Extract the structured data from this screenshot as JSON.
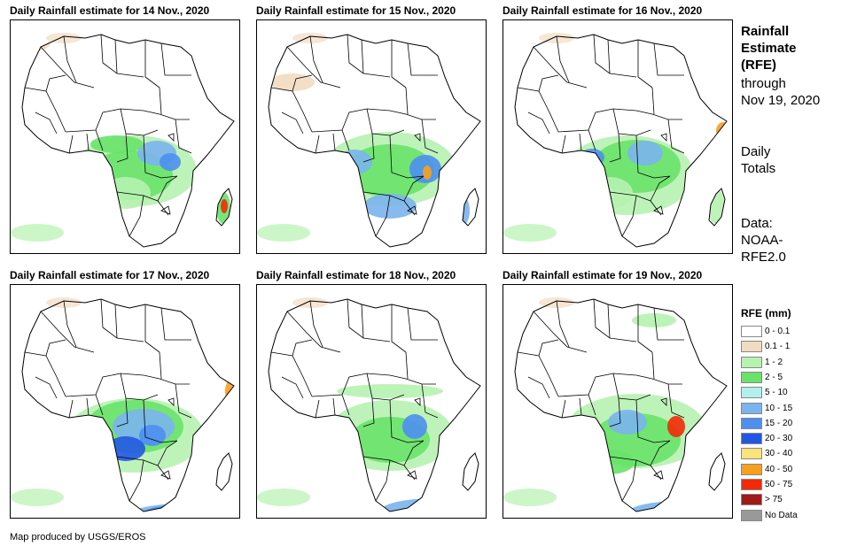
{
  "panels": [
    {
      "title": "Daily Rainfall estimate for 14 Nov., 2020"
    },
    {
      "title": "Daily Rainfall estimate for 15 Nov., 2020"
    },
    {
      "title": "Daily Rainfall estimate for 16 Nov., 2020"
    },
    {
      "title": "Daily Rainfall estimate for 17 Nov., 2020"
    },
    {
      "title": "Daily Rainfall estimate for 18 Nov., 2020"
    },
    {
      "title": "Daily Rainfall estimate for 19 Nov., 2020"
    }
  ],
  "sidebar": {
    "title_line1": "Rainfall",
    "title_line2": "Estimate",
    "title_line3": "(RFE)",
    "through": "through",
    "date": "Nov 19, 2020",
    "daily1": "Daily",
    "daily2": "Totals",
    "data1": "Data:",
    "data2": "NOAA-",
    "data3": "RFE2.0"
  },
  "legend": {
    "title": "RFE (mm)",
    "items": [
      {
        "label": "0 - 0.1",
        "color": "#ffffff"
      },
      {
        "label": "0.1 - 1",
        "color": "#f2dcc0"
      },
      {
        "label": "1 - 2",
        "color": "#b6f2b0"
      },
      {
        "label": "2 - 5",
        "color": "#69e26a"
      },
      {
        "label": "5 - 10",
        "color": "#b2efef"
      },
      {
        "label": "10 - 15",
        "color": "#7ab4ee"
      },
      {
        "label": "15 - 20",
        "color": "#4d8ff0"
      },
      {
        "label": "20 - 30",
        "color": "#2456e6"
      },
      {
        "label": "30 - 40",
        "color": "#fbe37c"
      },
      {
        "label": "40 - 50",
        "color": "#f6a01c"
      },
      {
        "label": "50 - 75",
        "color": "#f22a08"
      },
      {
        "label": "> 75",
        "color": "#a01a1a"
      },
      {
        "label": "No Data",
        "color": "#999999"
      }
    ]
  },
  "credit": "Map produced by USGS/EROS"
}
